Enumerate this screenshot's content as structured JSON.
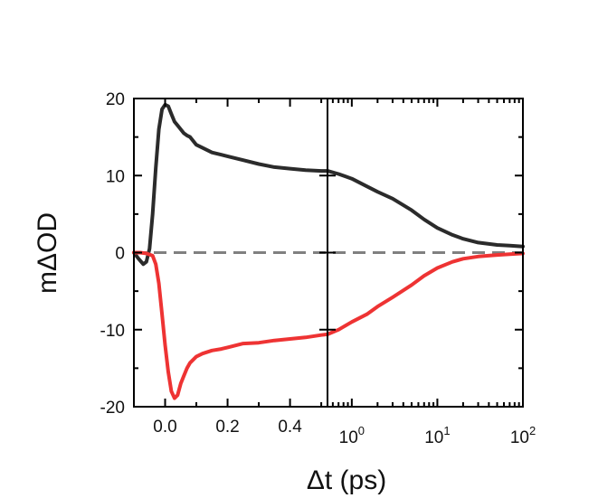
{
  "chart_data": {
    "type": "line",
    "title": "",
    "xlabel": "Δt (ps)",
    "ylabel": "mΔOD",
    "ylim": [
      -20,
      20
    ],
    "y_ticks": [
      20,
      10,
      0,
      -10,
      -20
    ],
    "y_tick_labels": [
      "20",
      "10",
      "0",
      "-10",
      "-20"
    ],
    "zero_line": {
      "value": 0,
      "style": "dashed",
      "color": "#808080"
    },
    "panels": [
      {
        "name": "linear",
        "xscale": "linear",
        "xlim": [
          -0.1,
          0.52
        ],
        "x_ticks": [
          0.0,
          0.2,
          0.4
        ],
        "x_tick_labels": [
          "0.0",
          "0.2",
          "0.4"
        ]
      },
      {
        "name": "log",
        "xscale": "log",
        "xlim": [
          0.52,
          100
        ],
        "x_ticks": [
          1,
          10,
          100
        ],
        "x_tick_labels": [
          {
            "base": "10",
            "exp": "0"
          },
          {
            "base": "10",
            "exp": "1"
          },
          {
            "base": "10",
            "exp": "2"
          }
        ]
      }
    ],
    "series": [
      {
        "name": "black trace",
        "color": "#2b2b2b",
        "linear": {
          "x": [
            -0.1,
            -0.085,
            -0.07,
            -0.06,
            -0.05,
            -0.04,
            -0.03,
            -0.02,
            -0.01,
            0.0,
            0.01,
            0.02,
            0.03,
            0.04,
            0.05,
            0.06,
            0.07,
            0.08,
            0.1,
            0.12,
            0.15,
            0.18,
            0.2,
            0.25,
            0.3,
            0.35,
            0.4,
            0.45,
            0.5,
            0.52
          ],
          "y": [
            0.0,
            -0.8,
            -1.5,
            -1.2,
            0.5,
            5.0,
            11.0,
            16.0,
            18.6,
            19.2,
            19.0,
            18.0,
            17.0,
            16.5,
            16.0,
            15.5,
            15.2,
            15.0,
            14.0,
            13.6,
            13.0,
            12.7,
            12.5,
            12.0,
            11.5,
            11.1,
            10.9,
            10.7,
            10.6,
            10.6
          ]
        },
        "log": {
          "x": [
            0.52,
            0.7,
            1,
            1.5,
            2,
            3,
            5,
            7,
            10,
            15,
            20,
            30,
            50,
            70,
            100
          ],
          "y": [
            10.6,
            10.2,
            9.6,
            8.6,
            7.9,
            7.0,
            5.5,
            4.3,
            3.2,
            2.3,
            1.8,
            1.3,
            1.0,
            0.9,
            0.8
          ]
        }
      },
      {
        "name": "red trace",
        "color": "#ee3333",
        "linear": {
          "x": [
            -0.1,
            -0.08,
            -0.06,
            -0.04,
            -0.03,
            -0.02,
            -0.01,
            0.0,
            0.01,
            0.02,
            0.03,
            0.04,
            0.05,
            0.06,
            0.07,
            0.08,
            0.1,
            0.12,
            0.15,
            0.18,
            0.2,
            0.25,
            0.3,
            0.35,
            0.4,
            0.45,
            0.5,
            0.52
          ],
          "y": [
            0.0,
            0.0,
            -0.1,
            -0.4,
            -1.5,
            -4.0,
            -8.0,
            -12.0,
            -15.5,
            -18.0,
            -18.9,
            -18.5,
            -17.0,
            -16.0,
            -15.0,
            -14.3,
            -13.5,
            -13.1,
            -12.7,
            -12.5,
            -12.3,
            -11.8,
            -11.7,
            -11.4,
            -11.2,
            -11.0,
            -10.7,
            -10.6
          ]
        },
        "log": {
          "x": [
            0.52,
            0.7,
            1,
            1.5,
            2,
            3,
            5,
            7,
            10,
            15,
            20,
            30,
            50,
            70,
            100
          ],
          "y": [
            -10.6,
            -10.0,
            -9.0,
            -8.0,
            -7.0,
            -5.8,
            -4.2,
            -3.0,
            -2.0,
            -1.2,
            -0.8,
            -0.5,
            -0.3,
            -0.2,
            -0.1
          ]
        }
      }
    ]
  }
}
